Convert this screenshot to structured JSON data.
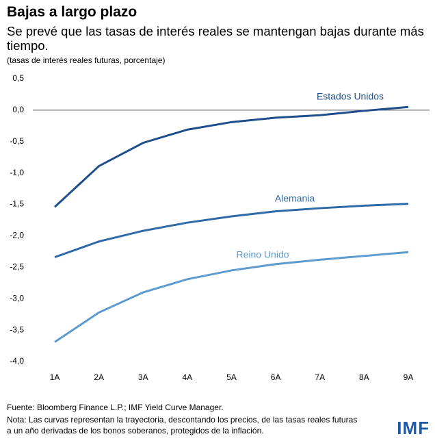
{
  "chart_data": {
    "type": "line",
    "title": "Bajas a largo plazo",
    "subtitle": "Se prevé que las tasas de interés reales se mantengan bajas durante más tiempo.",
    "unit_note": "(tasas de interés reales futuras, porcentaje)",
    "categories": [
      "1A",
      "2A",
      "3A",
      "4A",
      "5A",
      "6A",
      "7A",
      "8A",
      "9A"
    ],
    "series": [
      {
        "name": "Estados Unidos",
        "color": "#1f4e8c",
        "values": [
          -1.54,
          -0.89,
          -0.52,
          -0.31,
          -0.19,
          -0.12,
          -0.08,
          -0.01,
          0.05
        ]
      },
      {
        "name": "Alemania",
        "color": "#2e6aa8",
        "values": [
          -2.34,
          -2.09,
          -1.92,
          -1.79,
          -1.69,
          -1.61,
          -1.56,
          -1.52,
          -1.49
        ]
      },
      {
        "name": "Reino Unido",
        "color": "#5b9bd0",
        "values": [
          -3.69,
          -3.22,
          -2.9,
          -2.69,
          -2.55,
          -2.45,
          -2.38,
          -2.32,
          -2.26
        ]
      }
    ],
    "ylim": [
      -4.0,
      0.5
    ],
    "yticks": [
      {
        "value": 0.5,
        "label": "0,5"
      },
      {
        "value": 0.0,
        "label": "0,0"
      },
      {
        "value": -0.5,
        "label": "-0,5"
      },
      {
        "value": -1.0,
        "label": "-1,0"
      },
      {
        "value": -1.5,
        "label": "-1,5"
      },
      {
        "value": -2.0,
        "label": "-2,0"
      },
      {
        "value": -2.5,
        "label": "-2,5"
      },
      {
        "value": -3.0,
        "label": "-3,0"
      },
      {
        "value": -3.5,
        "label": "-3,5"
      },
      {
        "value": -4.0,
        "label": "-4,0"
      }
    ],
    "source": "Fuente: Bloomberg Finance L.P.; IMF Yield Curve Manager.",
    "note": [
      "Nota: Las curvas representan la trayectoria, descontando los precios, de las tasas reales futuras",
      "a un año derivadas de los bonos soberanos, protegidos de la inflación."
    ],
    "logo": "IMF"
  }
}
